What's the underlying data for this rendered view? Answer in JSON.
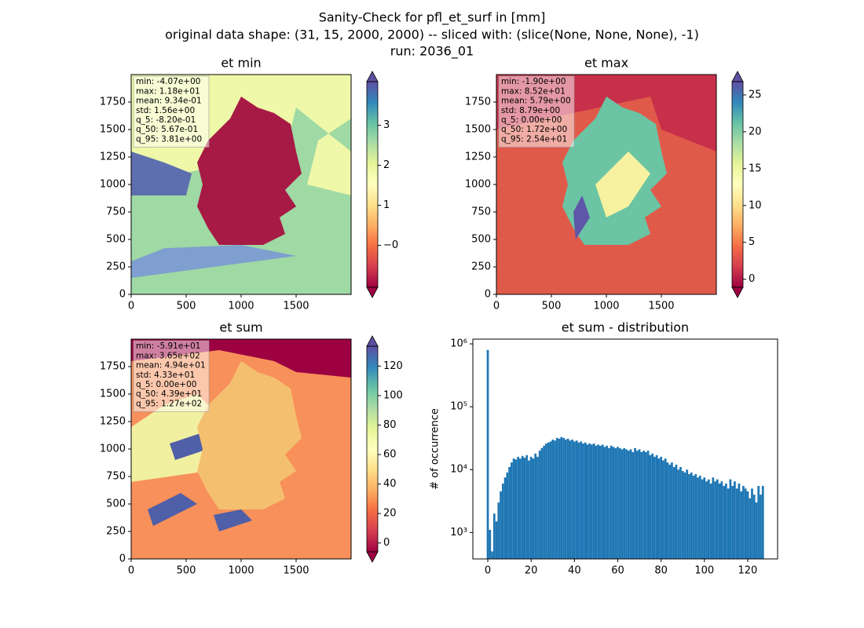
{
  "suptitle": [
    "Sanity-Check for pfl_et_surf in [mm]",
    "original data shape: (31, 15, 2000, 2000) -- sliced with: (slice(None, None, None), -1)",
    "run: 2036_01"
  ],
  "chart_data": [
    {
      "type": "heatmap",
      "title": "et min",
      "xlim": [
        0,
        2000
      ],
      "ylim": [
        0,
        2000
      ],
      "xticks": [
        0,
        500,
        1000,
        1500
      ],
      "yticks": [
        0,
        250,
        500,
        750,
        1000,
        1250,
        1500,
        1750
      ],
      "colormap": "Spectral",
      "clim": [
        -1.05,
        4.09
      ],
      "cticks": [
        {
          "value": 0,
          "label": "−0"
        },
        1,
        2,
        3
      ],
      "stats": [
        "min: -4.07e+00",
        "max: 1.18e+01",
        "mean: 9.34e-01",
        "std: 1.56e+00",
        "q_5: -8.20e-01",
        "q_50: 5.67e-01",
        "q_95: 3.81e+00"
      ]
    },
    {
      "type": "heatmap",
      "title": "et max",
      "xlim": [
        0,
        2000
      ],
      "ylim": [
        0,
        2000
      ],
      "xticks": [
        0,
        500,
        1000,
        1500
      ],
      "yticks": [
        0,
        250,
        500,
        750,
        1000,
        1250,
        1500,
        1750
      ],
      "colormap": "Spectral",
      "clim": [
        -1.1,
        26.8
      ],
      "cticks": [
        0,
        5,
        10,
        15,
        20,
        25
      ],
      "stats": [
        "min: -1.90e+00",
        "max: 8.52e+01",
        "mean: 5.79e+00",
        "std: 8.79e+00",
        "q_5: 0.00e+00",
        "q_50: 1.72e+00",
        "q_95: 2.54e+01"
      ]
    },
    {
      "type": "heatmap",
      "title": "et sum",
      "xlim": [
        0,
        2000
      ],
      "ylim": [
        0,
        2000
      ],
      "xticks": [
        0,
        500,
        1000,
        1500
      ],
      "yticks": [
        0,
        250,
        500,
        750,
        1000,
        1250,
        1500,
        1750
      ],
      "colormap": "Spectral",
      "clim": [
        -6,
        133.5
      ],
      "cticks": [
        0,
        20,
        40,
        60,
        80,
        100,
        120
      ],
      "stats": [
        "min: -5.91e+01",
        "max: 3.65e+02",
        "mean: 4.94e+01",
        "std: 4.33e+01",
        "q_5: 0.00e+00",
        "q_50: 4.39e+01",
        "q_95: 1.27e+02"
      ]
    },
    {
      "type": "histogram",
      "title": "et sum - distribution",
      "ylabel": "# of occurrence",
      "color": "#1f77b4",
      "log_y": true,
      "xlim": [
        -6.9,
        133.8
      ],
      "ylim": [
        380,
        1190000
      ],
      "xticks": [
        0,
        20,
        40,
        60,
        80,
        100,
        120
      ],
      "yticks": [
        {
          "value": 1000,
          "label": "10³"
        },
        {
          "value": 10000,
          "label": "10⁴"
        },
        {
          "value": 100000,
          "label": "10⁵"
        },
        {
          "value": 1000000,
          "label": "10⁶"
        }
      ],
      "bins": [
        -0.5,
        0.5,
        1.5,
        2.5,
        3.5,
        4.5,
        5.5,
        6.5,
        7.5,
        8.5,
        9.5,
        10.5,
        11.5,
        12.5,
        13.5,
        14.5,
        15.5,
        16.5,
        17.5,
        18.5,
        19.5,
        20.5,
        21.5,
        22.5,
        23.5,
        24.5,
        25.5,
        26.5,
        27.5,
        28.5,
        29.5,
        30.5,
        31.5,
        32.5,
        33.5,
        34.5,
        35.5,
        36.5,
        37.5,
        38.5,
        39.5,
        40.5,
        41.5,
        42.5,
        43.5,
        44.5,
        45.5,
        46.5,
        47.5,
        48.5,
        49.5,
        50.5,
        51.5,
        52.5,
        53.5,
        54.5,
        55.5,
        56.5,
        57.5,
        58.5,
        59.5,
        60.5,
        61.5,
        62.5,
        63.5,
        64.5,
        65.5,
        66.5,
        67.5,
        68.5,
        69.5,
        70.5,
        71.5,
        72.5,
        73.5,
        74.5,
        75.5,
        76.5,
        77.5,
        78.5,
        79.5,
        80.5,
        81.5,
        82.5,
        83.5,
        84.5,
        85.5,
        86.5,
        87.5,
        88.5,
        89.5,
        90.5,
        91.5,
        92.5,
        93.5,
        94.5,
        95.5,
        96.5,
        97.5,
        98.5,
        99.5,
        100.5,
        101.5,
        102.5,
        103.5,
        104.5,
        105.5,
        106.5,
        107.5,
        108.5,
        109.5,
        110.5,
        111.5,
        112.5,
        113.5,
        114.5,
        115.5,
        116.5,
        117.5,
        118.5,
        119.5,
        120.5,
        121.5,
        122.5,
        123.5,
        124.5,
        125.5,
        126.5,
        127.5
      ],
      "counts": [
        800000,
        1100,
        500,
        2000,
        1500,
        3000,
        4500,
        6000,
        7500,
        9000,
        11000,
        13000,
        15000,
        14500,
        16000,
        15000,
        16500,
        15500,
        17000,
        14000,
        16000,
        15000,
        18000,
        16000,
        20000,
        22000,
        24000,
        26000,
        27000,
        28000,
        30000,
        29000,
        32000,
        31000,
        33000,
        32000,
        30000,
        31000,
        29000,
        30000,
        28000,
        29000,
        27000,
        28000,
        26000,
        27000,
        25000,
        26000,
        25000,
        26000,
        24000,
        25000,
        24000,
        25000,
        23000,
        24000,
        22000,
        24000,
        23000,
        22000,
        23000,
        22000,
        21000,
        22000,
        21000,
        20000,
        21000,
        19000,
        22000,
        20000,
        21000,
        19000,
        20000,
        19000,
        20000,
        17000,
        18000,
        16000,
        17000,
        15000,
        16000,
        14000,
        15000,
        13000,
        12000,
        13000,
        11000,
        12000,
        10000,
        11000,
        9500,
        9000,
        10000,
        8500,
        9000,
        8000,
        8500,
        7500,
        8000,
        7000,
        7500,
        6500,
        7000,
        6000,
        7500,
        6500,
        7000,
        6000,
        6500,
        5500,
        6000,
        5000,
        7000,
        5500,
        6500,
        5000,
        6000,
        4500,
        5500,
        5000,
        4500,
        3500,
        5000,
        4000,
        3000,
        5500,
        4000,
        5500
      ]
    }
  ]
}
